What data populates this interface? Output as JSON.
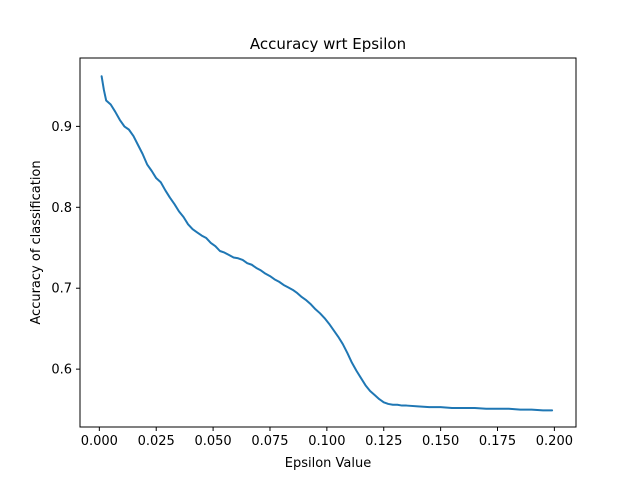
{
  "chart_data": {
    "type": "line",
    "title": "Accuracy wrt Epsilon",
    "xlabel": "Epsilon Value",
    "ylabel": "Accuracy of classification",
    "xlim": [
      -0.0085,
      0.2095
    ],
    "ylim": [
      0.5285,
      0.9845
    ],
    "grid": false,
    "xticks": [
      0.0,
      0.025,
      0.05,
      0.075,
      0.1,
      0.125,
      0.15,
      0.175,
      0.2
    ],
    "xtick_labels": [
      "0.000",
      "0.025",
      "0.050",
      "0.075",
      "0.100",
      "0.125",
      "0.150",
      "0.175",
      "0.200"
    ],
    "yticks": [
      0.6,
      0.7,
      0.8,
      0.9
    ],
    "ytick_labels": [
      "0.6",
      "0.7",
      "0.8",
      "0.9"
    ],
    "series": [
      {
        "color": "#1f77b4",
        "x": [
          0.001,
          0.002,
          0.003,
          0.005,
          0.007,
          0.009,
          0.011,
          0.013,
          0.015,
          0.017,
          0.019,
          0.021,
          0.023,
          0.025,
          0.027,
          0.029,
          0.031,
          0.033,
          0.035,
          0.037,
          0.039,
          0.041,
          0.043,
          0.045,
          0.047,
          0.049,
          0.051,
          0.053,
          0.055,
          0.057,
          0.059,
          0.061,
          0.063,
          0.065,
          0.067,
          0.069,
          0.071,
          0.073,
          0.075,
          0.077,
          0.079,
          0.081,
          0.083,
          0.085,
          0.087,
          0.089,
          0.091,
          0.093,
          0.095,
          0.097,
          0.099,
          0.101,
          0.103,
          0.105,
          0.107,
          0.109,
          0.111,
          0.113,
          0.115,
          0.117,
          0.119,
          0.121,
          0.123,
          0.125,
          0.127,
          0.129,
          0.131,
          0.133,
          0.135,
          0.14,
          0.145,
          0.15,
          0.155,
          0.16,
          0.165,
          0.17,
          0.175,
          0.18,
          0.185,
          0.19,
          0.195,
          0.199
        ],
        "y": [
          0.962,
          0.945,
          0.932,
          0.927,
          0.918,
          0.908,
          0.9,
          0.896,
          0.888,
          0.877,
          0.866,
          0.853,
          0.845,
          0.836,
          0.831,
          0.821,
          0.812,
          0.804,
          0.795,
          0.788,
          0.779,
          0.773,
          0.769,
          0.765,
          0.762,
          0.756,
          0.752,
          0.746,
          0.744,
          0.741,
          0.738,
          0.737,
          0.735,
          0.731,
          0.729,
          0.725,
          0.722,
          0.718,
          0.715,
          0.711,
          0.708,
          0.704,
          0.701,
          0.698,
          0.694,
          0.689,
          0.685,
          0.68,
          0.674,
          0.669,
          0.663,
          0.656,
          0.648,
          0.64,
          0.631,
          0.62,
          0.608,
          0.598,
          0.589,
          0.58,
          0.573,
          0.568,
          0.563,
          0.559,
          0.557,
          0.556,
          0.556,
          0.555,
          0.555,
          0.554,
          0.553,
          0.553,
          0.552,
          0.552,
          0.552,
          0.551,
          0.551,
          0.551,
          0.55,
          0.55,
          0.549,
          0.549
        ]
      }
    ]
  }
}
